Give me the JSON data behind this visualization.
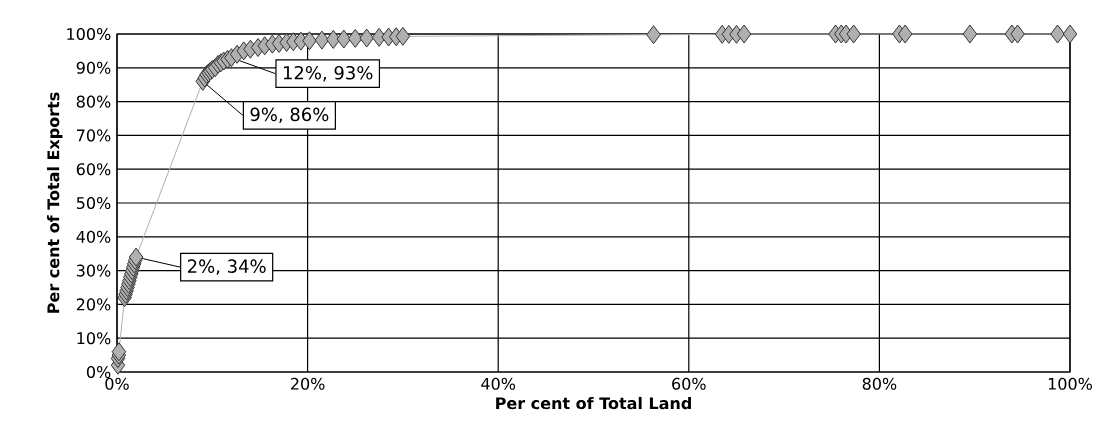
{
  "chart_data": {
    "type": "line",
    "xlabel": "Per cent of Total Land",
    "ylabel": "Per cent of Total Exports",
    "x": [
      0.1,
      0.1,
      0.2,
      0.2,
      0.8,
      0.9,
      1.0,
      1.1,
      1.2,
      1.3,
      1.4,
      1.5,
      1.6,
      1.7,
      1.8,
      1.9,
      2,
      9,
      9.2,
      9.4,
      9.6,
      9.8,
      10,
      10.3,
      10.6,
      10.9,
      11.2,
      11.6,
      12,
      12.6,
      13.3,
      14,
      14.8,
      15.5,
      16.3,
      17,
      17.8,
      18.5,
      19.3,
      20.2,
      21.5,
      22.7,
      23.8,
      25,
      26.2,
      27.5,
      28.5,
      29.3,
      30,
      56.3,
      63.5,
      64.2,
      65,
      65.8,
      75.4,
      76,
      76.5,
      77.3,
      82.1,
      82.7,
      89.5,
      93.9,
      94.5,
      98.7,
      100
    ],
    "series": [
      {
        "color": "#b0b0b0",
        "values": [
          2,
          4,
          5,
          6,
          22,
          23,
          24,
          25,
          26,
          27,
          28,
          29,
          30,
          31,
          32,
          33,
          34,
          86,
          87,
          88,
          88.5,
          89,
          89.5,
          90,
          91,
          91.5,
          92,
          92.5,
          93,
          94,
          95,
          95.5,
          96,
          96.5,
          97,
          97.2,
          97.5,
          97.7,
          97.9,
          98,
          98.2,
          98.4,
          98.5,
          98.7,
          98.8,
          99,
          99.1,
          99.2,
          99.3,
          99.8,
          99.9,
          99.9,
          99.9,
          100,
          100,
          100,
          100,
          100,
          100,
          100,
          100,
          100,
          100,
          100,
          100
        ]
      }
    ],
    "xlim": [
      0,
      100
    ],
    "ylim": [
      0,
      100
    ],
    "xticks": [
      {
        "value": 0,
        "label": "0%"
      },
      {
        "value": 20,
        "label": "20%"
      },
      {
        "value": 40,
        "label": "40%"
      },
      {
        "value": 60,
        "label": "60%"
      },
      {
        "value": 80,
        "label": "80%"
      },
      {
        "value": 100,
        "label": "100%"
      }
    ],
    "yticks": [
      {
        "value": 0,
        "label": "0%"
      },
      {
        "value": 10,
        "label": "10%"
      },
      {
        "value": 20,
        "label": "20%"
      },
      {
        "value": 30,
        "label": "30%"
      },
      {
        "value": 40,
        "label": "40%"
      },
      {
        "value": 50,
        "label": "50%"
      },
      {
        "value": 60,
        "label": "60%"
      },
      {
        "value": 70,
        "label": "70%"
      },
      {
        "value": 80,
        "label": "80%"
      },
      {
        "value": 90,
        "label": "90%"
      },
      {
        "value": 100,
        "label": "100%"
      }
    ],
    "grid": true,
    "marker": "diamond",
    "line_style": "solid",
    "annotations": [
      {
        "text": "12%, 93%",
        "x": 12,
        "y": 93
      },
      {
        "text": "9%, 86%",
        "x": 9,
        "y": 86
      },
      {
        "text": "2%, 34%",
        "x": 2,
        "y": 34
      }
    ]
  }
}
